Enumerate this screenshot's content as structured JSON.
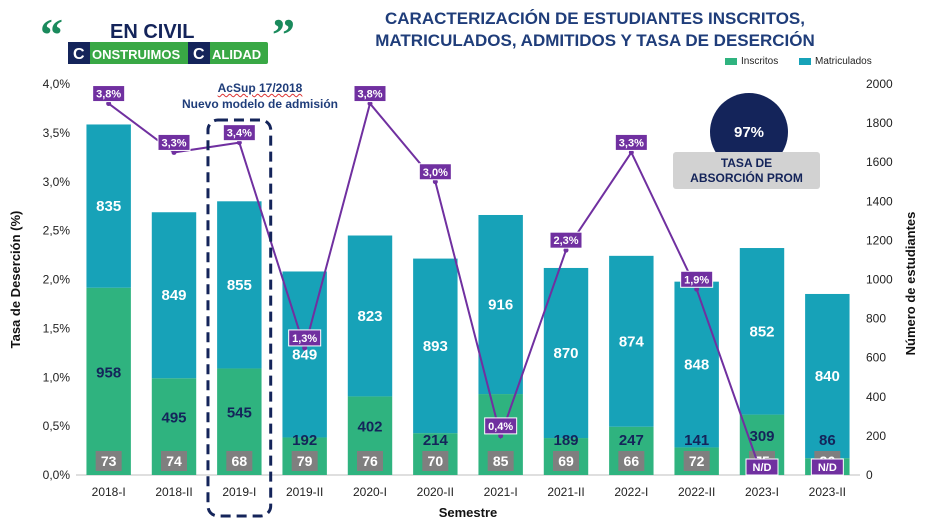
{
  "logo": {
    "line1": "EN CIVIL",
    "line2a": "ONSTRUIMOS",
    "line2b": "ALIDAD",
    "initial": "C",
    "open_quote": "“",
    "close_quote": "”"
  },
  "title_lines": [
    "CARACTERIZACIÓN DE ESTUDIANTES INSCRITOS,",
    "MATRICULADOS, ADMITIDOS Y TASA DE DESERCIÓN"
  ],
  "annotation": {
    "line1": "AcSup 17/2018",
    "line2": "Nuevo modelo de admisión"
  },
  "average": {
    "value": "97%",
    "label_line1": "TASA DE",
    "label_line2": "ABSORCIÓN PROM"
  },
  "colors": {
    "inscritos": "#2fb37f",
    "matriculados": "#17a2b8",
    "admitidos_box": "#7f7f7f",
    "rate_line": "#7030a0",
    "title": "#1f3d7a",
    "dark_navy": "#14245a"
  },
  "chart_data": {
    "type": "bar",
    "categories": [
      "2018-I",
      "2018-II",
      "2019-I",
      "2019-II",
      "2020-I",
      "2020-II",
      "2021-I",
      "2021-II",
      "2022-I",
      "2022-II",
      "2023-I",
      "2023-II"
    ],
    "series": [
      {
        "name": "Inscritos",
        "values": [
          958,
          495,
          545,
          192,
          402,
          214,
          414,
          189,
          247,
          141,
          309,
          86
        ]
      },
      {
        "name": "Matriculados",
        "values": [
          835,
          849,
          855,
          849,
          823,
          893,
          916,
          870,
          874,
          848,
          852,
          840
        ]
      }
    ],
    "admitted": [
      73,
      74,
      68,
      79,
      76,
      70,
      85,
      69,
      66,
      72,
      75,
      86
    ],
    "desertion_rate": [
      3.8,
      3.3,
      3.4,
      1.3,
      3.8,
      3.0,
      0.4,
      2.3,
      3.3,
      1.9,
      null,
      null
    ],
    "desertion_labels": [
      "3,8%",
      "3,3%",
      "3,4%",
      "1,3%",
      "3,8%",
      "3,0%",
      "0,4%",
      "2,3%",
      "3,3%",
      "1,9%",
      "N/D",
      "N/D"
    ],
    "xlabel": "Semestre",
    "ylabel_left": "Tasa de Deserción (%)",
    "ylabel_right": "Número de estudiantes",
    "ylim_left": [
      0,
      4.0
    ],
    "ylim_right": [
      0,
      2000
    ],
    "yticks_left": [
      "0,0%",
      "0,5%",
      "1,0%",
      "1,5%",
      "2,0%",
      "2,5%",
      "3,0%",
      "3,5%",
      "4,0%"
    ],
    "yticks_right": [
      "0",
      "200",
      "400",
      "600",
      "800",
      "1000",
      "1200",
      "1400",
      "1600",
      "1800",
      "2000"
    ],
    "highlight_category": "2019-I",
    "grid": false,
    "legend_position": "top-right"
  }
}
